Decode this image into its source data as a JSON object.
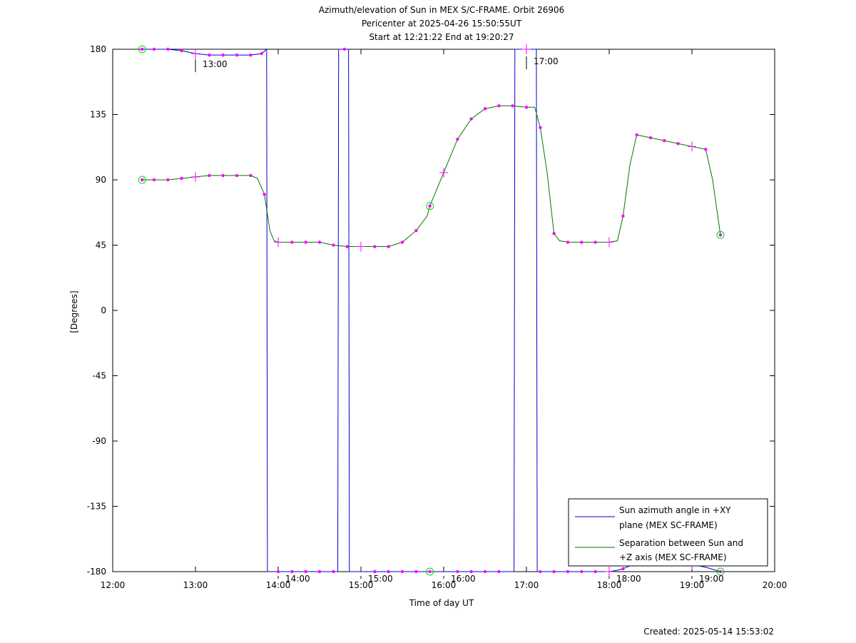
{
  "chart_data": {
    "type": "line",
    "title_lines": [
      "Azimuth/elevation of Sun in MEX S/C-FRAME.  Orbit 26906",
      "Pericenter at 2025-04-26 15:50:55UT",
      "Start at 12:21:22 End at 19:20:27"
    ],
    "xlabel": "Time of day UT",
    "ylabel": "[Degrees]",
    "footer": "Created: 2025-05-14 15:53:02",
    "xlim": [
      12.0,
      20.0
    ],
    "ylim": [
      -180,
      180
    ],
    "x_ticks": [
      {
        "v": 12,
        "label": "12:00"
      },
      {
        "v": 13,
        "label": "13:00"
      },
      {
        "v": 14,
        "label": "14:00"
      },
      {
        "v": 15,
        "label": "15:00"
      },
      {
        "v": 16,
        "label": "16:00"
      },
      {
        "v": 17,
        "label": "17:00"
      },
      {
        "v": 18,
        "label": "18:00"
      },
      {
        "v": 19,
        "label": "19:00"
      },
      {
        "v": 20,
        "label": "20:00"
      }
    ],
    "y_ticks": [
      {
        "v": 180,
        "label": "180"
      },
      {
        "v": 135,
        "label": "135"
      },
      {
        "v": 90,
        "label": "90"
      },
      {
        "v": 45,
        "label": "45"
      },
      {
        "v": 0,
        "label": "0"
      },
      {
        "v": -45,
        "label": "-45"
      },
      {
        "v": -90,
        "label": "-90"
      },
      {
        "v": -135,
        "label": "-135"
      },
      {
        "v": -180,
        "label": "-180"
      }
    ],
    "hour_annotations": [
      {
        "x": 13.0,
        "y": 176,
        "label": "13:00"
      },
      {
        "x": 14.0,
        "y": -180,
        "label": "14:00"
      },
      {
        "x": 15.0,
        "y": -180,
        "label": "15:00"
      },
      {
        "x": 16.0,
        "y": -180,
        "label": "16:00"
      },
      {
        "x": 17.0,
        "y": 178,
        "label": "17:00"
      },
      {
        "x": 18.0,
        "y": -180,
        "label": "18:00"
      },
      {
        "x": 19.0,
        "y": -180,
        "label": "19:00"
      }
    ],
    "legend_position": "bottom-right",
    "series": [
      {
        "name": "Sun azimuth angle in +XY plane (MEX SC-FRAME)",
        "legend_lines": [
          "Sun azimuth angle in +XY",
          "plane (MEX SC-FRAME)"
        ],
        "color": "#0000cc",
        "points": [
          [
            12.356,
            180
          ],
          [
            12.5,
            180
          ],
          [
            12.667,
            180
          ],
          [
            12.833,
            179
          ],
          [
            13.0,
            177
          ],
          [
            13.167,
            176
          ],
          [
            13.333,
            176
          ],
          [
            13.5,
            176
          ],
          [
            13.667,
            176
          ],
          [
            13.8,
            177
          ],
          [
            13.86,
            180
          ],
          [
            13.87,
            -180
          ],
          [
            14.0,
            -180
          ],
          [
            14.167,
            -180
          ],
          [
            14.333,
            -180
          ],
          [
            14.5,
            -180
          ],
          [
            14.667,
            -180
          ],
          [
            14.72,
            -180
          ],
          [
            14.73,
            180
          ],
          [
            14.85,
            180
          ],
          [
            14.86,
            -180
          ],
          [
            15.0,
            -180
          ],
          [
            15.167,
            -180
          ],
          [
            15.333,
            -180
          ],
          [
            15.5,
            -180
          ],
          [
            15.667,
            -180
          ],
          [
            15.833,
            -180
          ],
          [
            16.0,
            -180
          ],
          [
            16.167,
            -180
          ],
          [
            16.333,
            -180
          ],
          [
            16.5,
            -180
          ],
          [
            16.667,
            -180
          ],
          [
            16.85,
            -180
          ],
          [
            16.86,
            180
          ],
          [
            16.99,
            180
          ],
          [
            17.0,
            180
          ],
          [
            17.12,
            180
          ],
          [
            17.13,
            -180
          ],
          [
            17.167,
            -180
          ],
          [
            17.333,
            -180
          ],
          [
            17.5,
            -180
          ],
          [
            17.667,
            -180
          ],
          [
            17.833,
            -180
          ],
          [
            18.0,
            -180
          ],
          [
            18.1,
            -179
          ],
          [
            18.167,
            -178
          ],
          [
            18.333,
            -174
          ],
          [
            18.5,
            -172
          ],
          [
            18.667,
            -172
          ],
          [
            18.833,
            -173
          ],
          [
            19.0,
            -175
          ],
          [
            19.167,
            -177
          ],
          [
            19.345,
            -180
          ]
        ]
      },
      {
        "name": "Separation between Sun and +Z axis (MEX SC-FRAME)",
        "legend_lines": [
          "Separation between Sun and",
          "+Z axis (MEX SC-FRAME)"
        ],
        "color": "#007700",
        "points": [
          [
            12.356,
            90
          ],
          [
            12.5,
            90
          ],
          [
            12.667,
            90
          ],
          [
            12.833,
            91
          ],
          [
            13.0,
            92
          ],
          [
            13.167,
            93
          ],
          [
            13.333,
            93
          ],
          [
            13.5,
            93
          ],
          [
            13.667,
            93
          ],
          [
            13.75,
            91
          ],
          [
            13.833,
            80
          ],
          [
            13.9,
            55
          ],
          [
            13.95,
            48
          ],
          [
            14.0,
            47
          ],
          [
            14.167,
            47
          ],
          [
            14.333,
            47
          ],
          [
            14.5,
            47
          ],
          [
            14.667,
            45
          ],
          [
            14.833,
            44
          ],
          [
            15.0,
            44
          ],
          [
            15.167,
            44
          ],
          [
            15.333,
            44
          ],
          [
            15.5,
            47
          ],
          [
            15.667,
            55
          ],
          [
            15.8,
            65
          ],
          [
            15.833,
            72
          ],
          [
            16.0,
            95
          ],
          [
            16.167,
            118
          ],
          [
            16.333,
            132
          ],
          [
            16.5,
            139
          ],
          [
            16.667,
            141
          ],
          [
            16.833,
            141
          ],
          [
            17.0,
            140
          ],
          [
            17.1,
            140
          ],
          [
            17.167,
            126
          ],
          [
            17.25,
            95
          ],
          [
            17.333,
            53
          ],
          [
            17.4,
            48
          ],
          [
            17.5,
            47
          ],
          [
            17.667,
            47
          ],
          [
            17.833,
            47
          ],
          [
            18.0,
            47
          ],
          [
            18.1,
            48
          ],
          [
            18.167,
            65
          ],
          [
            18.25,
            100
          ],
          [
            18.333,
            121
          ],
          [
            18.5,
            119
          ],
          [
            18.667,
            117
          ],
          [
            18.833,
            115
          ],
          [
            19.0,
            113
          ],
          [
            19.167,
            111
          ],
          [
            19.25,
            90
          ],
          [
            19.345,
            52
          ]
        ]
      }
    ],
    "marker_color": "#ff00ff",
    "endpoint_color": "#00dd00",
    "magenta_dots": [
      [
        12.356,
        180
      ],
      [
        12.5,
        180
      ],
      [
        12.667,
        180
      ],
      [
        12.833,
        179
      ],
      [
        13.167,
        176
      ],
      [
        13.333,
        176
      ],
      [
        13.5,
        176
      ],
      [
        13.667,
        176
      ],
      [
        13.8,
        177
      ],
      [
        14.0,
        -180
      ],
      [
        14.167,
        -180
      ],
      [
        14.333,
        -180
      ],
      [
        14.5,
        -180
      ],
      [
        14.667,
        -180
      ],
      [
        14.8,
        180
      ],
      [
        15.167,
        -180
      ],
      [
        15.333,
        -180
      ],
      [
        15.5,
        -180
      ],
      [
        15.667,
        -180
      ],
      [
        16.167,
        -180
      ],
      [
        16.333,
        -180
      ],
      [
        16.5,
        -180
      ],
      [
        16.667,
        -180
      ],
      [
        17.167,
        -180
      ],
      [
        17.333,
        -180
      ],
      [
        17.5,
        -180
      ],
      [
        17.667,
        -180
      ],
      [
        17.833,
        -180
      ],
      [
        18.167,
        -178
      ],
      [
        12.356,
        90
      ],
      [
        12.5,
        90
      ],
      [
        12.667,
        90
      ],
      [
        12.833,
        91
      ],
      [
        13.167,
        93
      ],
      [
        13.333,
        93
      ],
      [
        13.5,
        93
      ],
      [
        13.667,
        93
      ],
      [
        13.833,
        80
      ],
      [
        14.167,
        47
      ],
      [
        14.333,
        47
      ],
      [
        14.5,
        47
      ],
      [
        14.667,
        45
      ],
      [
        14.833,
        44
      ],
      [
        15.167,
        44
      ],
      [
        15.333,
        44
      ],
      [
        15.5,
        47
      ],
      [
        15.667,
        55
      ],
      [
        16.167,
        118
      ],
      [
        16.333,
        132
      ],
      [
        16.5,
        139
      ],
      [
        16.667,
        141
      ],
      [
        16.833,
        141
      ],
      [
        17.0,
        140
      ],
      [
        17.167,
        126
      ],
      [
        17.333,
        53
      ],
      [
        17.5,
        47
      ],
      [
        17.667,
        47
      ],
      [
        17.833,
        47
      ],
      [
        18.167,
        65
      ],
      [
        18.333,
        121
      ],
      [
        18.5,
        119
      ],
      [
        18.667,
        117
      ],
      [
        18.833,
        115
      ],
      [
        19.167,
        111
      ],
      [
        19.345,
        52
      ]
    ],
    "plus_markers": [
      [
        13.0,
        177
      ],
      [
        13.0,
        92
      ],
      [
        14.0,
        47
      ],
      [
        15.0,
        44
      ],
      [
        16.0,
        95
      ],
      [
        17.0,
        180
      ],
      [
        18.0,
        47
      ],
      [
        18.0,
        -180
      ],
      [
        19.0,
        113
      ],
      [
        19.0,
        -175
      ]
    ],
    "circle_markers": [
      [
        12.356,
        180
      ],
      [
        12.356,
        90
      ],
      [
        15.833,
        72
      ],
      [
        15.833,
        -180
      ],
      [
        19.345,
        52
      ],
      [
        19.345,
        -180
      ]
    ]
  }
}
